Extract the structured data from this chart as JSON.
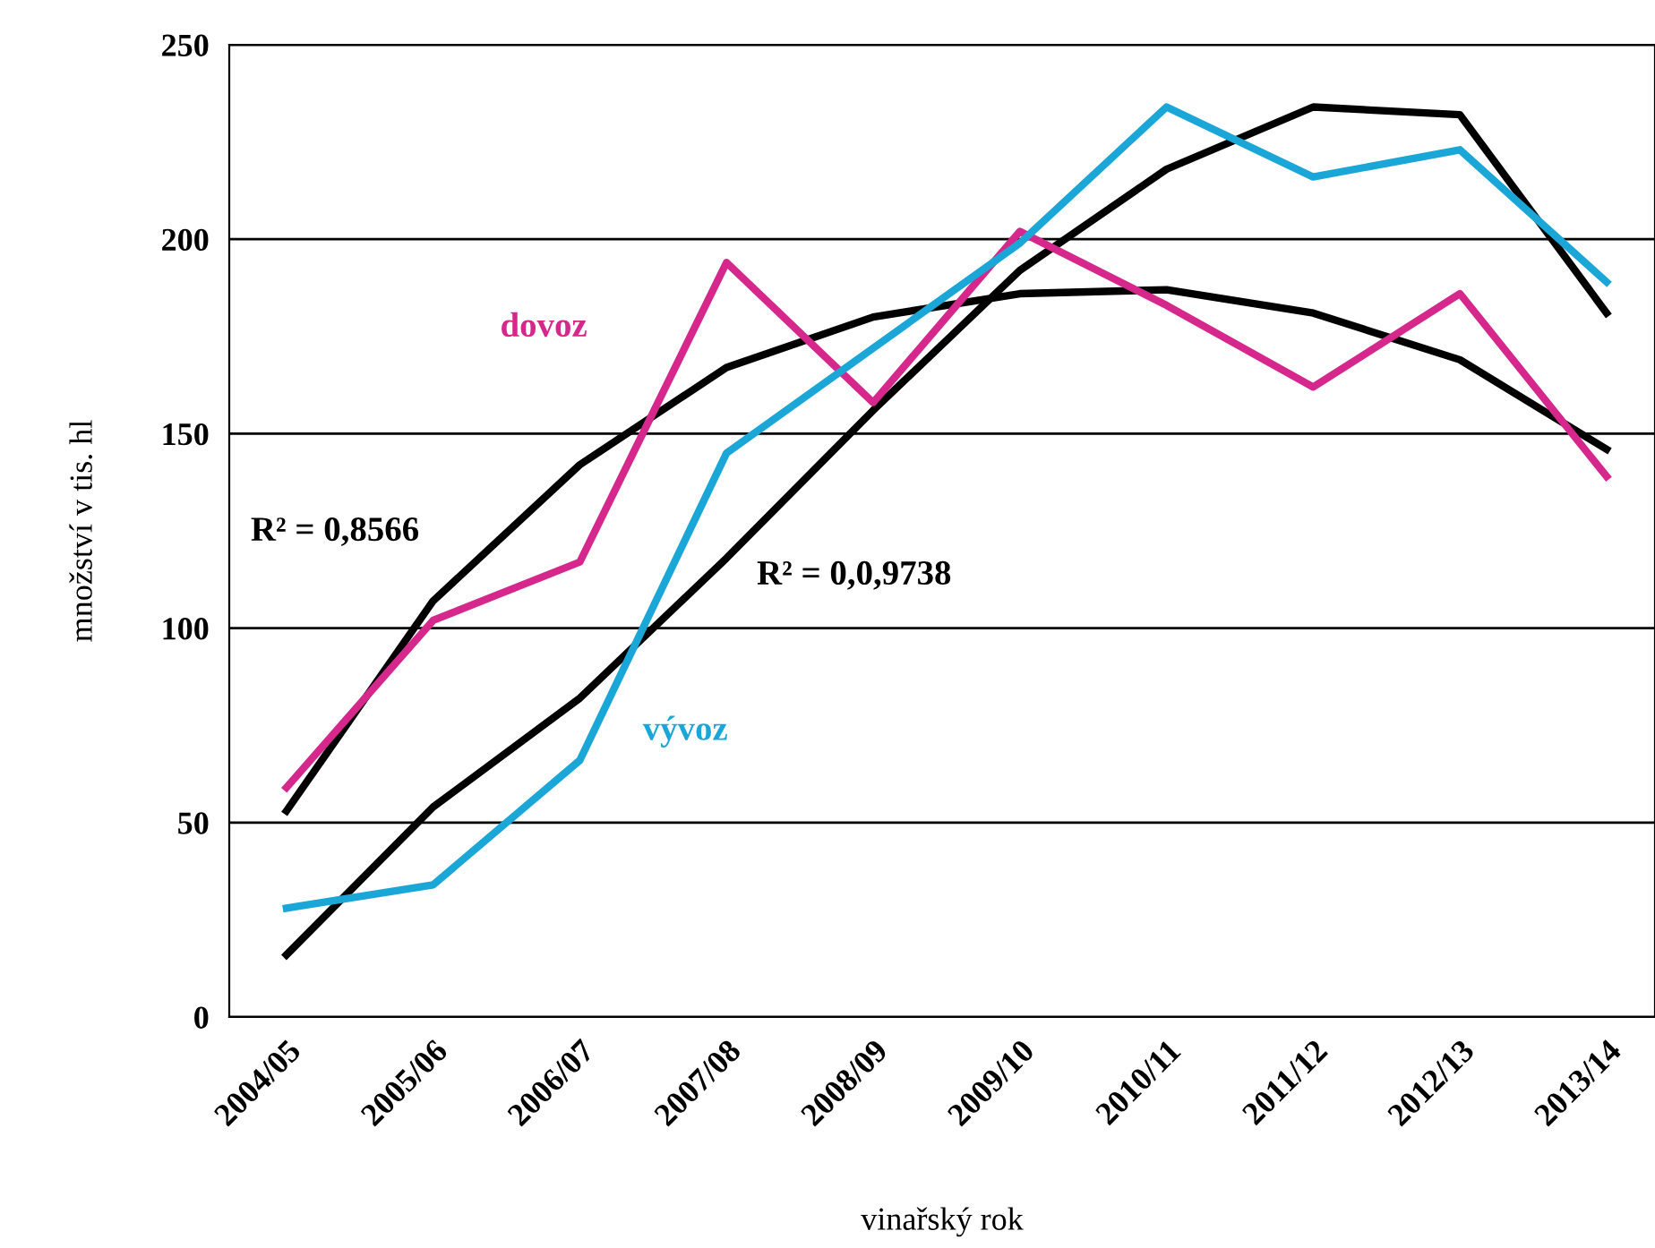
{
  "chart_data": {
    "type": "line",
    "xlabel": "vinařský rok",
    "ylabel": "množství v tis. hl",
    "categories": [
      "2004/05",
      "2005/06",
      "2006/07",
      "2007/08",
      "2008/09",
      "2009/10",
      "2010/11",
      "2011/12",
      "2012/13",
      "2013/14"
    ],
    "series": [
      {
        "name": "dovoz",
        "color": "#d6278c",
        "values": [
          59,
          102,
          117,
          194,
          158,
          202,
          183,
          162,
          186,
          139
        ]
      },
      {
        "name": "vývoz",
        "color": "#1aa7d8",
        "values": [
          28,
          34,
          66,
          145,
          172,
          199,
          234,
          216,
          223,
          189
        ]
      },
      {
        "color": "#000000",
        "values": [
          53,
          107,
          142,
          167,
          180,
          186,
          187,
          181,
          169,
          146
        ]
      },
      {
        "color": "#000000",
        "values": [
          16,
          54,
          82,
          118,
          156,
          192,
          218,
          234,
          232,
          181
        ]
      }
    ],
    "annotations": [
      "R² = 0,8566",
      "R² = 0,0,9738"
    ],
    "ylim": [
      0,
      250
    ],
    "yticks": [
      0,
      50,
      100,
      150,
      200,
      250
    ],
    "grid": "y",
    "legend": false
  }
}
